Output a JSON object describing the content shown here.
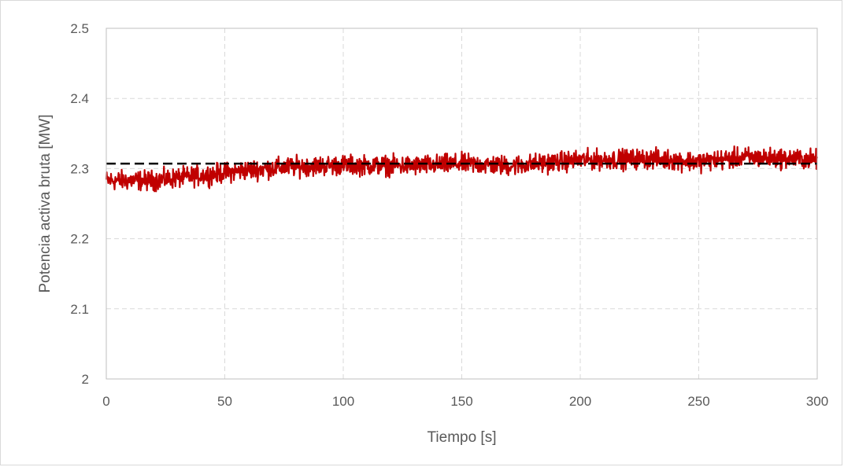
{
  "chart_data": {
    "type": "line",
    "title": "",
    "xlabel": "Tiempo [s]",
    "ylabel": "Potencia activa bruta [MW]",
    "xlim": [
      0,
      300
    ],
    "ylim": [
      2.0,
      2.5
    ],
    "xticks": [
      0,
      50,
      100,
      150,
      200,
      250,
      300
    ],
    "yticks": [
      2,
      2.1,
      2.2,
      2.3,
      2.4,
      2.5
    ],
    "xtick_labels": [
      "0",
      "50",
      "100",
      "150",
      "200",
      "250",
      "300"
    ],
    "ytick_labels": [
      "2",
      "2.1",
      "2.2",
      "2.3",
      "2.4",
      "2.5"
    ],
    "grid": true,
    "legend": "none",
    "series": [
      {
        "style": "solid",
        "color": "#c00000",
        "noise_amplitude": 0.012,
        "trend_x": [
          0,
          20,
          40,
          60,
          80,
          100,
          130,
          150,
          170,
          200,
          230,
          250,
          270,
          300
        ],
        "trend_y": [
          2.283,
          2.283,
          2.29,
          2.298,
          2.303,
          2.305,
          2.304,
          2.307,
          2.304,
          2.312,
          2.314,
          2.31,
          2.316,
          2.313
        ]
      },
      {
        "style": "dashed",
        "color": "#000000",
        "x": [
          0,
          300
        ],
        "y": [
          2.307,
          2.307
        ]
      }
    ]
  }
}
